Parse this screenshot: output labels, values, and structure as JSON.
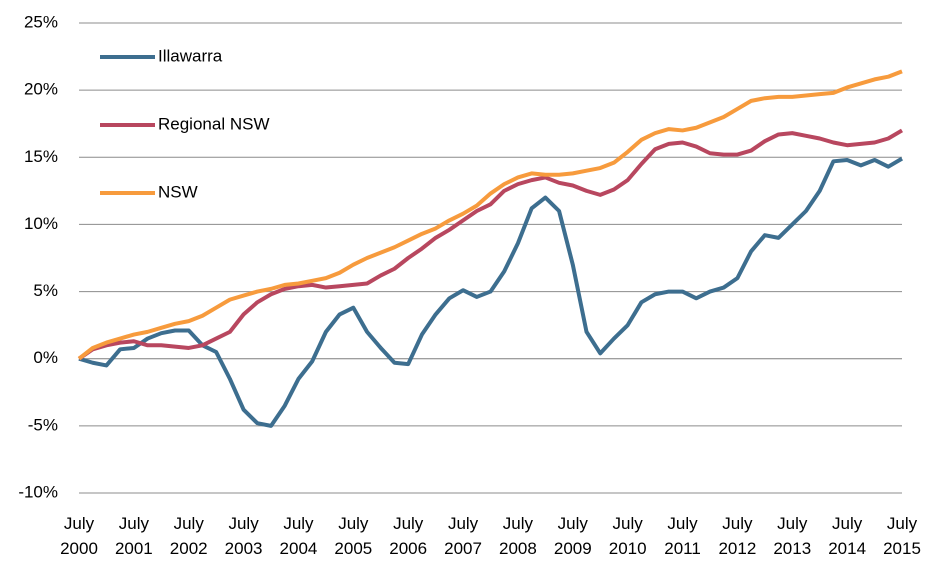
{
  "chart_data": {
    "type": "line",
    "categories": [
      "July 2000",
      null,
      null,
      null,
      "July 2001",
      null,
      null,
      null,
      "July 2002",
      null,
      null,
      null,
      "July 2003",
      null,
      null,
      null,
      "July 2004",
      null,
      null,
      null,
      "July 2005",
      null,
      null,
      null,
      "July 2006",
      null,
      null,
      null,
      "July 2007",
      null,
      null,
      null,
      "July 2008",
      null,
      null,
      null,
      "July 2009",
      null,
      null,
      null,
      "July 2010",
      null,
      null,
      null,
      "July 2011",
      null,
      null,
      null,
      "July 2012",
      null,
      null,
      null,
      "July 2013",
      null,
      null,
      null,
      "July 2014",
      null,
      null,
      null,
      "July 2015"
    ],
    "series": [
      {
        "name": "Illawarra",
        "color": "#3d6e8f",
        "values": [
          0,
          -0.3,
          -0.5,
          0.7,
          0.8,
          1.5,
          1.9,
          2.1,
          2.1,
          1.0,
          0.5,
          -1.5,
          -3.8,
          -4.8,
          -5.0,
          -3.5,
          -1.5,
          -0.2,
          2.0,
          3.3,
          3.8,
          2.0,
          0.8,
          -0.3,
          -0.4,
          1.8,
          3.3,
          4.5,
          5.1,
          4.6,
          5.0,
          6.5,
          8.6,
          11.2,
          12.0,
          11.0,
          7.0,
          2.0,
          0.4,
          1.5,
          2.5,
          4.2,
          4.8,
          5.0,
          5.0,
          4.5,
          5.0,
          5.3,
          6.0,
          8.0,
          9.2,
          9.0,
          10.0,
          11.0,
          12.5,
          14.7,
          14.8,
          14.4,
          14.8,
          14.3,
          14.9
        ]
      },
      {
        "name": "Regional NSW",
        "color": "#b8475f",
        "values": [
          0,
          0.7,
          1.0,
          1.2,
          1.3,
          1.0,
          1.0,
          0.9,
          0.8,
          1.0,
          1.5,
          2.0,
          3.3,
          4.2,
          4.8,
          5.2,
          5.4,
          5.5,
          5.3,
          5.4,
          5.5,
          5.6,
          6.2,
          6.7,
          7.5,
          8.2,
          9.0,
          9.6,
          10.3,
          11.0,
          11.5,
          12.5,
          13.0,
          13.3,
          13.5,
          13.1,
          12.9,
          12.5,
          12.2,
          12.6,
          13.3,
          14.5,
          15.6,
          16.0,
          16.1,
          15.8,
          15.3,
          15.2,
          15.2,
          15.5,
          16.2,
          16.7,
          16.8,
          16.6,
          16.4,
          16.1,
          15.9,
          16.0,
          16.1,
          16.4,
          17.0
        ]
      },
      {
        "name": "NSW",
        "color": "#f79b3d",
        "values": [
          0,
          0.8,
          1.2,
          1.5,
          1.8,
          2.0,
          2.3,
          2.6,
          2.8,
          3.2,
          3.8,
          4.4,
          4.7,
          5.0,
          5.2,
          5.5,
          5.6,
          5.8,
          6.0,
          6.4,
          7.0,
          7.5,
          7.9,
          8.3,
          8.8,
          9.3,
          9.7,
          10.3,
          10.8,
          11.4,
          12.3,
          13.0,
          13.5,
          13.8,
          13.7,
          13.7,
          13.8,
          14.0,
          14.2,
          14.6,
          15.4,
          16.3,
          16.8,
          17.1,
          17.0,
          17.2,
          17.6,
          18.0,
          18.6,
          19.2,
          19.4,
          19.5,
          19.5,
          19.6,
          19.7,
          19.8,
          20.2,
          20.5,
          20.8,
          21.0,
          21.4
        ]
      }
    ],
    "ylim": [
      -10,
      25
    ],
    "yticks": [
      {
        "value": -10,
        "label": "-10%"
      },
      {
        "value": -5,
        "label": "-5%"
      },
      {
        "value": 0,
        "label": "0%"
      },
      {
        "value": 5,
        "label": "5%"
      },
      {
        "value": 10,
        "label": "10%"
      },
      {
        "value": 15,
        "label": "15%"
      },
      {
        "value": 20,
        "label": "20%"
      },
      {
        "value": 25,
        "label": "25%"
      }
    ],
    "grid": true,
    "legend": "upper left"
  }
}
